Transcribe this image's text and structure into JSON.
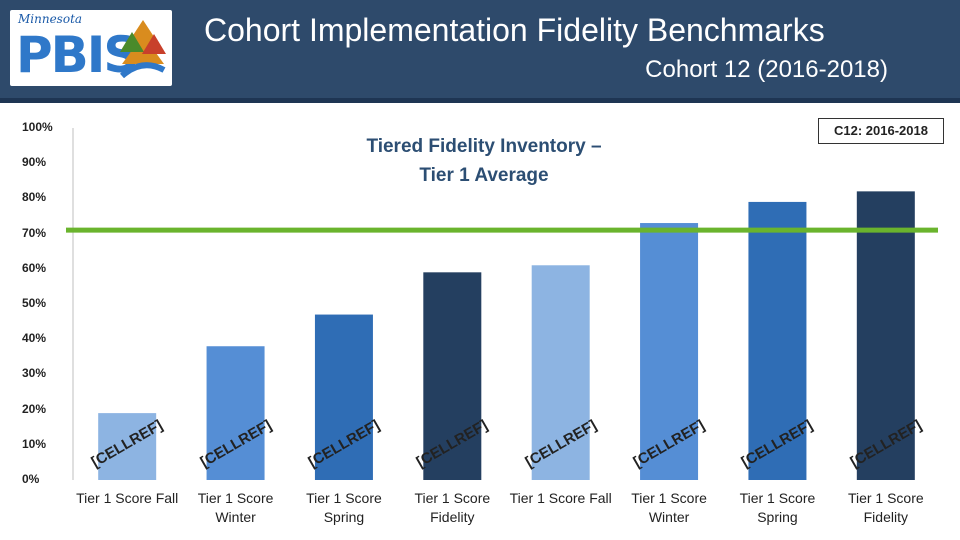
{
  "header": {
    "title": "Cohort Implementation Fidelity Benchmarks",
    "subtitle": "Cohort 12 (2016-2018)",
    "logo_script": "Minnesota",
    "logo_word": "PBIS"
  },
  "colors": {
    "header_bg": "#2e4a6b",
    "benchmark_line": "#6ab42d",
    "light_blue": "#8db4e2",
    "mid_blue": "#558ed5",
    "blue": "#2f6db5",
    "navy": "#243f60"
  },
  "chart_data": {
    "type": "bar",
    "title": "Tiered Fidelity Inventory – Tier 1 Average",
    "title_lines": [
      "Tiered Fidelity Inventory –",
      "Tier 1 Average"
    ],
    "legend": "C12: 2016-2018",
    "categories": [
      "Tier 1 Score Fall",
      "Tier 1 Score Winter",
      "Tier 1 Score Spring",
      "Tier 1 Score Fidelity",
      "Tier 1 Score Fall",
      "Tier 1 Score Winter",
      "Tier 1 Score Spring",
      "Tier 1 Score Fidelity"
    ],
    "category_lines": [
      [
        "Tier 1 Score Fall"
      ],
      [
        "Tier 1 Score",
        "Winter"
      ],
      [
        "Tier 1 Score",
        "Spring"
      ],
      [
        "Tier 1 Score",
        "Fidelity"
      ],
      [
        "Tier 1 Score Fall"
      ],
      [
        "Tier 1 Score",
        "Winter"
      ],
      [
        "Tier 1 Score",
        "Spring"
      ],
      [
        "Tier 1 Score",
        "Fidelity"
      ]
    ],
    "values": [
      19,
      38,
      47,
      59,
      61,
      73,
      79,
      82
    ],
    "bar_colors": [
      "#8db4e2",
      "#558ed5",
      "#2f6db5",
      "#243f60",
      "#8db4e2",
      "#558ed5",
      "#2f6db5",
      "#243f60"
    ],
    "data_labels": [
      "[CELLREF]",
      "[CELLREF]",
      "[CELLREF]",
      "[CELLREF]",
      "[CELLREF]",
      "[CELLREF]",
      "[CELLREF]",
      "[CELLREF]"
    ],
    "benchmark": 71,
    "ylim": [
      0,
      100
    ],
    "yticks": [
      "0%",
      "10%",
      "20%",
      "30%",
      "40%",
      "50%",
      "60%",
      "70%",
      "80%",
      "90%",
      "100%"
    ],
    "grid": false
  }
}
